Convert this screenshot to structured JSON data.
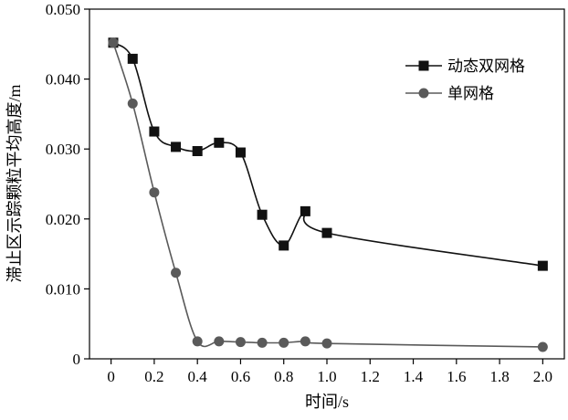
{
  "chart_data": {
    "type": "line",
    "xlabel": "时间/s",
    "ylabel": "滞止区示踪颗粒平均高度/m",
    "xlim": [
      -0.1,
      2.1
    ],
    "ylim": [
      0,
      0.05
    ],
    "x_ticks": [
      0,
      0.2,
      0.4,
      0.6,
      0.8,
      1.0,
      1.2,
      1.4,
      1.6,
      1.8,
      2.0
    ],
    "x_tick_labels": [
      "0",
      "0.2",
      "0.4",
      "0.6",
      "0.8",
      "1.0",
      "1.2",
      "1.4",
      "1.6",
      "1.8",
      "2.0"
    ],
    "y_ticks": [
      0,
      0.01,
      0.02,
      0.03,
      0.04,
      0.05
    ],
    "y_tick_labels": [
      "0",
      "0.010",
      "0.020",
      "0.030",
      "0.040",
      "0.050"
    ],
    "grid": false,
    "legend_position": "top-right",
    "series": [
      {
        "name": "动态双网格",
        "marker": "square",
        "color": "#111111",
        "x": [
          0.01,
          0.1,
          0.2,
          0.3,
          0.4,
          0.5,
          0.6,
          0.7,
          0.8,
          0.9,
          1.0,
          2.0
        ],
        "y": [
          0.0452,
          0.0429,
          0.0325,
          0.0303,
          0.0297,
          0.0309,
          0.0295,
          0.0206,
          0.0162,
          0.0211,
          0.018,
          0.0133
        ]
      },
      {
        "name": "单网格",
        "marker": "circle",
        "color": "#5a5a5a",
        "x": [
          0.01,
          0.1,
          0.2,
          0.3,
          0.4,
          0.5,
          0.6,
          0.7,
          0.8,
          0.9,
          1.0,
          2.0
        ],
        "y": [
          0.0452,
          0.0365,
          0.0238,
          0.0123,
          0.0025,
          0.0025,
          0.0024,
          0.0023,
          0.0023,
          0.0025,
          0.0022,
          0.0017
        ]
      }
    ]
  }
}
